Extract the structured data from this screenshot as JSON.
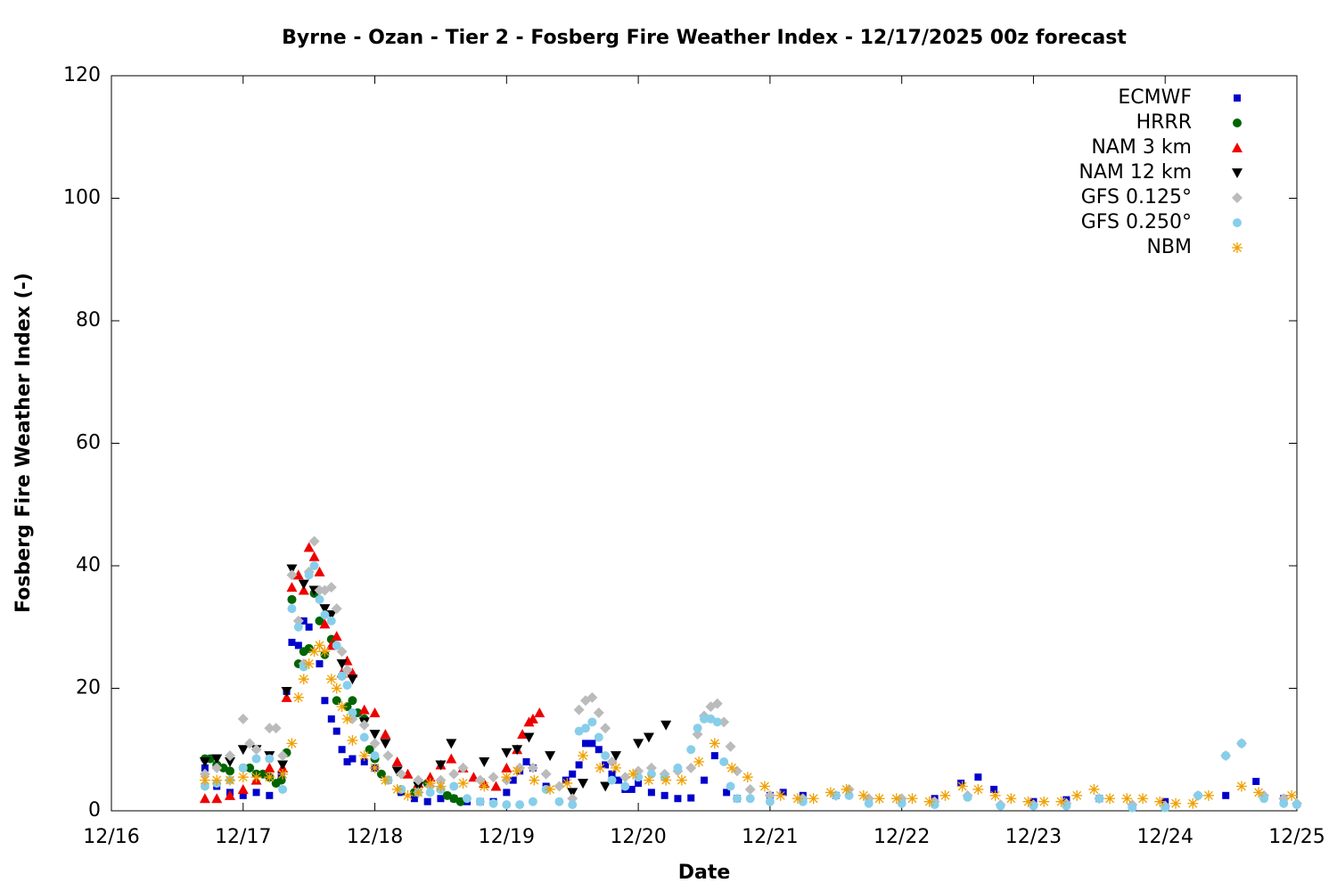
{
  "chart_data": {
    "type": "scatter",
    "title": "Byrne - Ozan - Tier 2 - Fosberg Fire Weather Index - 12/17/2025 00z forecast",
    "x_label": "Date",
    "y_label": "Fosberg Fire Weather Index (-)",
    "xlim": [
      0,
      9
    ],
    "ylim": [
      0,
      120
    ],
    "xticks": [
      {
        "value": 0,
        "label": "12/16"
      },
      {
        "value": 1,
        "label": "12/17"
      },
      {
        "value": 2,
        "label": "12/18"
      },
      {
        "value": 3,
        "label": "12/19"
      },
      {
        "value": 4,
        "label": "12/20"
      },
      {
        "value": 5,
        "label": "12/21"
      },
      {
        "value": 6,
        "label": "12/22"
      },
      {
        "value": 7,
        "label": "12/23"
      },
      {
        "value": 8,
        "label": "12/24"
      },
      {
        "value": 9,
        "label": "12/25"
      }
    ],
    "yticks": [
      0,
      20,
      40,
      60,
      80,
      100,
      120
    ],
    "legend": "upper right",
    "series": [
      {
        "name": "ECMWF",
        "color": "#0000cc",
        "marker": "square",
        "x": [
          0.71,
          0.8,
          0.9,
          1.0,
          1.1,
          1.2,
          1.29,
          1.33,
          1.37,
          1.42,
          1.46,
          1.5,
          1.58,
          1.62,
          1.67,
          1.71,
          1.75,
          1.79,
          1.83,
          1.92,
          2.0,
          2.1,
          2.2,
          2.3,
          2.4,
          2.5,
          2.6,
          2.7,
          2.8,
          2.9,
          3.0,
          3.05,
          3.1,
          3.15,
          3.2,
          3.3,
          3.45,
          3.5,
          3.55,
          3.6,
          3.65,
          3.7,
          3.75,
          3.8,
          3.85,
          3.9,
          3.95,
          4.0,
          4.1,
          4.2,
          4.3,
          4.4,
          4.5,
          4.58,
          4.67,
          4.75,
          5.0,
          5.1,
          5.25,
          5.5,
          5.75,
          6.0,
          6.25,
          6.45,
          6.58,
          6.7,
          7.0,
          7.25,
          7.5,
          8.0,
          8.46,
          8.69,
          8.9
        ],
        "values": [
          7,
          4,
          3,
          2.5,
          3,
          2.5,
          6,
          19.5,
          27.5,
          27,
          31,
          30,
          24,
          18,
          15,
          13,
          10,
          8,
          8.5,
          8,
          7,
          5,
          3,
          2,
          1.5,
          2,
          2,
          1.5,
          1.5,
          1.5,
          3,
          5,
          6.5,
          8,
          7,
          4,
          5,
          6,
          7.5,
          11,
          11,
          10,
          7.5,
          6,
          5,
          3.5,
          3.5,
          4.5,
          3,
          2.5,
          2,
          2.1,
          5,
          9,
          3,
          2,
          2.5,
          3,
          2.5,
          2.5,
          1.5,
          1.5,
          2,
          4.5,
          5.5,
          3.5,
          1.5,
          1.8,
          2,
          1.5,
          2.5,
          4.8,
          2
        ]
      },
      {
        "name": "HRRR",
        "color": "#006400",
        "marker": "circle",
        "x": [
          0.71,
          0.75,
          0.8,
          0.85,
          0.9,
          1.0,
          1.05,
          1.1,
          1.15,
          1.2,
          1.25,
          1.29,
          1.33,
          1.37,
          1.42,
          1.46,
          1.5,
          1.54,
          1.58,
          1.62,
          1.67,
          1.71,
          1.75,
          1.79,
          1.83,
          1.87,
          1.92,
          1.96,
          2.0,
          2.05,
          2.1,
          2.2,
          2.3,
          2.4,
          2.5,
          2.55,
          2.6,
          2.65
        ],
        "values": [
          8.5,
          8.5,
          7.5,
          7,
          6.5,
          7,
          7,
          6,
          6,
          5.5,
          4.5,
          5,
          9.5,
          34.5,
          24,
          26,
          26.5,
          35.5,
          31,
          25.5,
          28,
          18,
          22,
          17,
          18,
          16,
          15,
          10,
          8.5,
          6,
          5,
          3.5,
          3,
          4.5,
          3.5,
          2.5,
          2,
          1.5
        ]
      },
      {
        "name": "NAM 3 km",
        "color": "#ee0000",
        "marker": "triangle-up",
        "x": [
          0.71,
          0.8,
          0.9,
          1.0,
          1.1,
          1.2,
          1.3,
          1.33,
          1.37,
          1.42,
          1.46,
          1.5,
          1.54,
          1.58,
          1.62,
          1.67,
          1.71,
          1.75,
          1.79,
          1.83,
          1.92,
          2.0,
          2.08,
          2.17,
          2.25,
          2.33,
          2.42,
          2.5,
          2.58,
          2.67,
          2.75,
          2.83,
          2.92,
          3.0,
          3.08,
          3.12,
          3.17,
          3.2,
          3.25
        ],
        "values": [
          2,
          2,
          2.5,
          3.5,
          5,
          7,
          7,
          18.5,
          36.5,
          38.5,
          36,
          43,
          41.5,
          39,
          30.5,
          27,
          28.5,
          22.5,
          24.5,
          22.5,
          16.5,
          16,
          12.5,
          8,
          6,
          4.5,
          5.5,
          7.5,
          8.5,
          7,
          5.5,
          4.5,
          4,
          7,
          10,
          12.5,
          14.5,
          15,
          16
        ]
      },
      {
        "name": "NAM 12 km",
        "color": "#000000",
        "marker": "triangle-down",
        "x": [
          0.71,
          0.8,
          0.9,
          1.0,
          1.1,
          1.2,
          1.3,
          1.33,
          1.37,
          1.46,
          1.54,
          1.62,
          1.67,
          1.75,
          1.83,
          1.92,
          2.0,
          2.08,
          2.17,
          2.33,
          2.5,
          2.58,
          2.83,
          3.0,
          3.08,
          3.17,
          3.33,
          3.5,
          3.58,
          3.75,
          3.83,
          4.0,
          4.08,
          4.21
        ],
        "values": [
          8,
          8.5,
          8,
          10,
          10,
          9,
          7.5,
          19.5,
          39.5,
          37,
          36,
          33,
          32,
          24,
          21.5,
          14.5,
          12.5,
          11,
          6.5,
          4,
          7.5,
          11,
          8,
          9.5,
          10,
          12,
          9,
          3,
          4.5,
          4,
          9,
          11,
          12,
          14
        ]
      },
      {
        "name": "GFS 0.125°",
        "color": "#bbbbbb",
        "marker": "diamond",
        "x": [
          0.71,
          0.8,
          0.9,
          1.0,
          1.05,
          1.1,
          1.2,
          1.25,
          1.3,
          1.37,
          1.42,
          1.46,
          1.5,
          1.54,
          1.58,
          1.62,
          1.67,
          1.71,
          1.75,
          1.79,
          1.83,
          1.92,
          2.0,
          2.1,
          2.2,
          2.33,
          2.42,
          2.5,
          2.6,
          2.67,
          2.8,
          2.9,
          3.0,
          3.1,
          3.2,
          3.3,
          3.4,
          3.5,
          3.55,
          3.6,
          3.65,
          3.7,
          3.75,
          3.8,
          3.9,
          4.0,
          4.1,
          4.2,
          4.3,
          4.4,
          4.45,
          4.5,
          4.55,
          4.6,
          4.65,
          4.7,
          4.75,
          4.85,
          5.0,
          5.25,
          5.5,
          5.6,
          5.75,
          6.0,
          6.25,
          6.5,
          6.75,
          7.0,
          7.25,
          7.5,
          7.75,
          8.0,
          8.25,
          8.46,
          8.58,
          8.75,
          8.9,
          9.0
        ],
        "values": [
          6,
          7,
          9,
          15,
          11,
          10,
          13.5,
          13.5,
          9,
          38.5,
          31,
          24,
          39,
          44,
          36,
          36,
          36.5,
          33,
          26,
          23,
          15,
          14,
          11,
          9,
          6,
          5,
          4,
          5,
          6,
          7,
          5,
          5.5,
          5,
          7,
          7,
          6,
          4,
          2,
          16.5,
          18,
          18.5,
          16,
          13.5,
          8,
          5.5,
          6.5,
          7,
          6,
          6.5,
          7,
          12.5,
          15.5,
          17,
          17.5,
          14.5,
          10.5,
          6.5,
          3.5,
          2.5,
          2,
          2.5,
          3.5,
          2,
          2,
          1.5,
          2.5,
          1,
          1,
          1.2,
          2,
          1,
          0.8,
          2.5,
          9,
          11,
          2.5,
          2,
          1.2
        ]
      },
      {
        "name": "GFS 0.250°",
        "color": "#87ceeb",
        "marker": "circle",
        "x": [
          0.71,
          0.8,
          0.9,
          1.0,
          1.1,
          1.2,
          1.3,
          1.37,
          1.42,
          1.46,
          1.5,
          1.54,
          1.58,
          1.62,
          1.67,
          1.71,
          1.75,
          1.79,
          1.83,
          1.92,
          2.0,
          2.1,
          2.2,
          2.33,
          2.42,
          2.5,
          2.6,
          2.7,
          2.8,
          2.9,
          3.0,
          3.1,
          3.2,
          3.3,
          3.4,
          3.5,
          3.55,
          3.6,
          3.65,
          3.7,
          3.75,
          3.8,
          3.9,
          4.0,
          4.1,
          4.2,
          4.3,
          4.4,
          4.45,
          4.5,
          4.55,
          4.6,
          4.65,
          4.7,
          4.75,
          4.85,
          5.0,
          5.25,
          5.5,
          5.6,
          5.75,
          6.0,
          6.25,
          6.5,
          6.75,
          7.0,
          7.25,
          7.5,
          7.75,
          8.0,
          8.25,
          8.46,
          8.58,
          8.75,
          8.9,
          9.0
        ],
        "values": [
          4,
          4.5,
          5,
          7,
          8.5,
          8.5,
          3.5,
          33,
          30,
          23.5,
          38.5,
          40,
          34.5,
          32,
          31,
          27,
          22,
          20.5,
          16,
          12,
          9,
          5,
          3.5,
          3,
          3,
          3.5,
          4,
          2,
          1.5,
          1.2,
          1,
          1,
          1.5,
          3.5,
          1.5,
          1,
          13,
          13.5,
          14.5,
          12,
          9,
          5,
          4,
          5.5,
          6,
          5.5,
          7,
          10,
          13.5,
          15,
          15,
          14.5,
          8,
          4,
          2,
          2,
          1.5,
          1.5,
          2.5,
          2.5,
          1.2,
          1.2,
          1,
          2.2,
          0.8,
          0.8,
          0.8,
          2,
          0.5,
          0.5,
          2.5,
          9,
          11,
          2,
          1.2,
          1
        ]
      },
      {
        "name": "NBM",
        "color": "#f0a000",
        "marker": "star",
        "x": [
          0.71,
          0.8,
          0.9,
          1.0,
          1.1,
          1.2,
          1.3,
          1.37,
          1.42,
          1.46,
          1.5,
          1.54,
          1.58,
          1.62,
          1.67,
          1.71,
          1.75,
          1.79,
          1.83,
          1.92,
          2.0,
          2.08,
          2.17,
          2.25,
          2.33,
          2.42,
          2.5,
          2.67,
          2.83,
          3.0,
          3.08,
          3.21,
          3.33,
          3.46,
          3.58,
          3.71,
          3.83,
          3.96,
          4.08,
          4.21,
          4.33,
          4.46,
          4.58,
          4.71,
          4.83,
          4.96,
          5.08,
          5.21,
          5.33,
          5.46,
          5.58,
          5.71,
          5.83,
          5.96,
          6.08,
          6.21,
          6.33,
          6.46,
          6.58,
          6.71,
          6.83,
          6.96,
          7.08,
          7.21,
          7.33,
          7.46,
          7.58,
          7.71,
          7.83,
          7.96,
          8.08,
          8.21,
          8.33,
          8.58,
          8.71,
          8.96
        ],
        "values": [
          5,
          5,
          5,
          5.5,
          5.5,
          5.5,
          6,
          11,
          18.5,
          21.5,
          24,
          26,
          27,
          26,
          21.5,
          20,
          17,
          15,
          11.5,
          9,
          7,
          5,
          3.5,
          2.5,
          3,
          4.5,
          4,
          4.5,
          4,
          5.5,
          6.5,
          5,
          3.5,
          4.5,
          9,
          7,
          7,
          6,
          5,
          5,
          5,
          8,
          11,
          7,
          5.5,
          4,
          2.5,
          2,
          2,
          3,
          3.5,
          2.5,
          2,
          2,
          2,
          1.5,
          2.5,
          4,
          3.5,
          2.5,
          2,
          1.5,
          1.5,
          1.5,
          2.5,
          3.5,
          2,
          2,
          2,
          1.5,
          1.2,
          1.2,
          2.5,
          4,
          3,
          2.5
        ]
      }
    ]
  }
}
